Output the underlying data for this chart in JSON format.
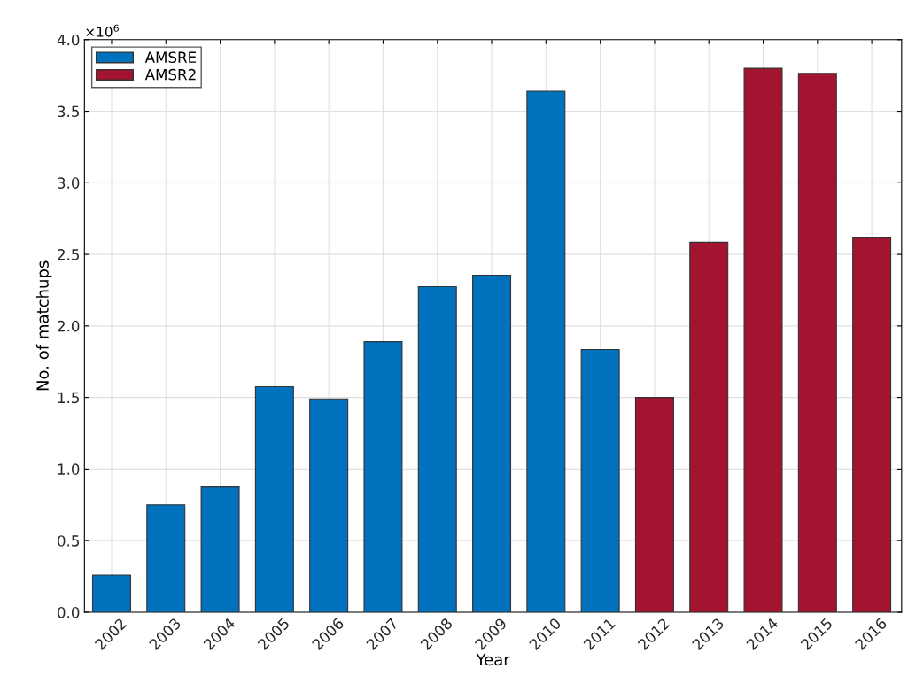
{
  "chart_data": {
    "type": "bar",
    "xlabel": "Year",
    "ylabel": "No. of matchups",
    "categories": [
      "2002",
      "2003",
      "2004",
      "2005",
      "2006",
      "2007",
      "2008",
      "2009",
      "2010",
      "2011",
      "2012",
      "2013",
      "2014",
      "2015",
      "2016"
    ],
    "series": [
      {
        "name": "AMSRE",
        "color": "#0072bd",
        "values": [
          0.26,
          0.75,
          0.875,
          1.575,
          1.49,
          1.89,
          2.275,
          2.355,
          3.64,
          1.835,
          null,
          null,
          null,
          null,
          null
        ]
      },
      {
        "name": "AMSR2",
        "color": "#a2142f",
        "values": [
          null,
          null,
          null,
          null,
          null,
          null,
          null,
          null,
          null,
          null,
          1.5,
          2.585,
          3.8,
          3.765,
          2.615
        ]
      }
    ],
    "ylim": [
      0,
      4.0
    ],
    "yticks": [
      {
        "value": 0,
        "label": "0.0"
      },
      {
        "value": 0.5,
        "label": "0.5"
      },
      {
        "value": 1.0,
        "label": "1.0"
      },
      {
        "value": 1.5,
        "label": "1.5"
      },
      {
        "value": 2.0,
        "label": "2.0"
      },
      {
        "value": 2.5,
        "label": "2.5"
      },
      {
        "value": 3.0,
        "label": "3.0"
      },
      {
        "value": 3.5,
        "label": "3.5"
      },
      {
        "value": 4.0,
        "label": "4.0"
      }
    ],
    "annotations": [
      "×10$^{6}$"
    ],
    "grid": true,
    "legend": "top left"
  }
}
